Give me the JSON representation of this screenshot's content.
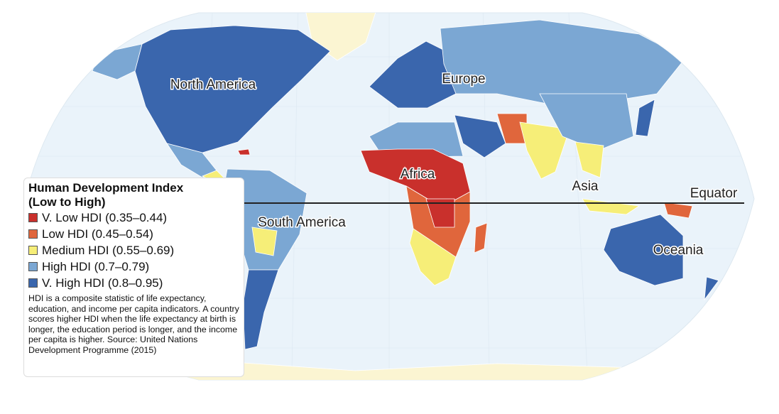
{
  "map": {
    "labels": {
      "north_america": "North America",
      "europe": "Europe",
      "africa": "Africa",
      "asia": "Asia",
      "south_america": "South America",
      "oceania": "Oceania"
    },
    "equator": "Equator",
    "legend": {
      "title": "Human Development Index",
      "subtitle": "(Low to High)",
      "items": [
        {
          "label": "V. Low HDI (0.35–0.44)",
          "color": "#c9302c"
        },
        {
          "label": "Low HDI (0.45–0.54)",
          "color": "#e0663c"
        },
        {
          "label": "Medium HDI (0.55–0.69)",
          "color": "#f6ee78"
        },
        {
          "label": "High HDI (0.7–0.79)",
          "color": "#7ba7d3"
        },
        {
          "label": "V. High HDI (0.8–0.95)",
          "color": "#3a66ad"
        }
      ],
      "note": "HDI is a composite statistic of life expectancy, education, and income per capita indicators. A country scores higher HDI when the life expectancy at birth is longer, the education period is longer, and the income per capita is higher. Source: United Nations Development Programme (2015)"
    }
  }
}
